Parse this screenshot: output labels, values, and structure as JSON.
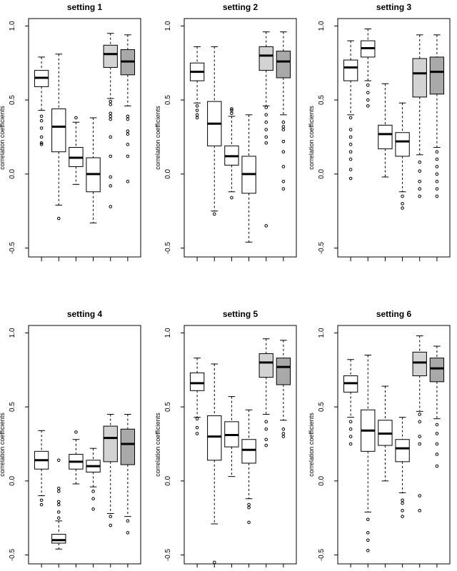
{
  "chart_data": [
    {
      "type": "boxplot",
      "title": "setting 1",
      "ylabel": "correlation coefficients",
      "ylim": [
        -0.56,
        1.05
      ],
      "yticks": [
        "-0.5",
        "0.0",
        "0.5",
        "1.0"
      ],
      "boxes": [
        {
          "whisker_low": 0.43,
          "q1": 0.59,
          "median": 0.65,
          "q3": 0.7,
          "whisker_high": 0.79,
          "outliers": [
            0.39,
            0.36,
            0.31,
            0.25,
            0.21,
            0.2
          ]
        },
        {
          "whisker_low": -0.21,
          "q1": 0.15,
          "median": 0.32,
          "q3": 0.44,
          "whisker_high": 0.81,
          "outliers": [
            -0.3
          ]
        },
        {
          "whisker_low": -0.07,
          "q1": 0.05,
          "median": 0.11,
          "q3": 0.18,
          "whisker_high": 0.35,
          "outliers": [
            0.38
          ]
        },
        {
          "whisker_low": -0.33,
          "q1": -0.12,
          "median": 0.0,
          "q3": 0.11,
          "whisker_high": 0.38,
          "outliers": []
        },
        {
          "whisker_low": 0.51,
          "q1": 0.72,
          "median": 0.81,
          "q3": 0.87,
          "whisker_high": 0.95,
          "outliers": [
            0.49,
            0.47,
            0.41,
            0.39,
            0.37,
            0.25,
            0.12,
            -0.02,
            -0.08,
            -0.22
          ]
        },
        {
          "whisker_low": 0.46,
          "q1": 0.67,
          "median": 0.76,
          "q3": 0.84,
          "whisker_high": 0.94,
          "outliers": [
            0.39,
            0.37,
            0.29,
            0.27,
            0.2,
            0.12,
            -0.05
          ]
        }
      ]
    },
    {
      "type": "boxplot",
      "title": "setting 2",
      "ylabel": "correlation coefficients",
      "ylim": [
        -0.56,
        1.05
      ],
      "yticks": [
        "-0.5",
        "0.0",
        "0.5",
        "1.0"
      ],
      "boxes": [
        {
          "whisker_low": 0.48,
          "q1": 0.63,
          "median": 0.69,
          "q3": 0.75,
          "whisker_high": 0.86,
          "outliers": [
            0.46,
            0.43,
            0.4,
            0.38
          ]
        },
        {
          "whisker_low": -0.25,
          "q1": 0.19,
          "median": 0.34,
          "q3": 0.49,
          "whisker_high": 0.86,
          "outliers": [
            -0.27
          ]
        },
        {
          "whisker_low": -0.12,
          "q1": 0.06,
          "median": 0.12,
          "q3": 0.19,
          "whisker_high": 0.39,
          "outliers": [
            0.41,
            0.43,
            0.44,
            -0.16
          ]
        },
        {
          "whisker_low": -0.46,
          "q1": -0.13,
          "median": 0.0,
          "q3": 0.12,
          "whisker_high": 0.4,
          "outliers": []
        },
        {
          "whisker_low": 0.46,
          "q1": 0.7,
          "median": 0.8,
          "q3": 0.86,
          "whisker_high": 0.96,
          "outliers": [
            0.45,
            0.4,
            0.35,
            0.3,
            0.25,
            0.21,
            -0.35
          ]
        },
        {
          "whisker_low": 0.4,
          "q1": 0.65,
          "median": 0.76,
          "q3": 0.83,
          "whisker_high": 0.96,
          "outliers": [
            0.35,
            0.32,
            0.3,
            0.22,
            0.15,
            0.05,
            -0.05,
            -0.1
          ]
        }
      ]
    },
    {
      "type": "boxplot",
      "title": "setting 3",
      "ylabel": "correlation coefficients",
      "ylim": [
        -0.56,
        1.05
      ],
      "yticks": [
        "-0.5",
        "0.0",
        "0.5",
        "1.0"
      ],
      "boxes": [
        {
          "whisker_low": 0.4,
          "q1": 0.63,
          "median": 0.72,
          "q3": 0.77,
          "whisker_high": 0.9,
          "outliers": [
            0.38,
            0.3,
            0.25,
            0.2,
            0.15,
            0.1,
            0.03,
            -0.03
          ]
        },
        {
          "whisker_low": 0.63,
          "q1": 0.79,
          "median": 0.85,
          "q3": 0.9,
          "whisker_high": 0.98,
          "outliers": [
            0.6,
            0.55,
            0.5,
            0.46
          ]
        },
        {
          "whisker_low": -0.02,
          "q1": 0.17,
          "median": 0.27,
          "q3": 0.33,
          "whisker_high": 0.61,
          "outliers": []
        },
        {
          "whisker_low": -0.12,
          "q1": 0.12,
          "median": 0.22,
          "q3": 0.28,
          "whisker_high": 0.48,
          "outliers": [
            -0.15,
            -0.2,
            -0.23
          ]
        },
        {
          "whisker_low": 0.13,
          "q1": 0.52,
          "median": 0.68,
          "q3": 0.78,
          "whisker_high": 0.94,
          "outliers": [
            0.08,
            0.02,
            -0.05,
            -0.1,
            -0.15
          ]
        },
        {
          "whisker_low": 0.18,
          "q1": 0.54,
          "median": 0.69,
          "q3": 0.79,
          "whisker_high": 0.94,
          "outliers": [
            0.15,
            0.1,
            0.05,
            0.0,
            -0.05,
            -0.1,
            -0.15
          ]
        }
      ]
    },
    {
      "type": "boxplot",
      "title": "setting 4",
      "ylabel": "correlation coefficients",
      "ylim": [
        -0.56,
        1.05
      ],
      "yticks": [
        "-0.5",
        "0.0",
        "0.5",
        "1.0"
      ],
      "boxes": [
        {
          "whisker_low": -0.1,
          "q1": 0.08,
          "median": 0.14,
          "q3": 0.2,
          "whisker_high": 0.34,
          "outliers": [
            -0.13,
            -0.16
          ]
        },
        {
          "whisker_low": -0.46,
          "q1": -0.42,
          "median": -0.4,
          "q3": -0.36,
          "whisker_high": -0.27,
          "outliers": [
            0.14,
            -0.05,
            -0.07,
            -0.14,
            -0.16,
            -0.21,
            -0.25
          ]
        },
        {
          "whisker_low": -0.02,
          "q1": 0.08,
          "median": 0.13,
          "q3": 0.18,
          "whisker_high": 0.28,
          "outliers": [
            0.33
          ]
        },
        {
          "whisker_low": -0.04,
          "q1": 0.06,
          "median": 0.1,
          "q3": 0.14,
          "whisker_high": 0.22,
          "outliers": [
            -0.07,
            -0.12,
            -0.19
          ]
        },
        {
          "whisker_low": -0.22,
          "q1": 0.13,
          "median": 0.29,
          "q3": 0.37,
          "whisker_high": 0.45,
          "outliers": [
            -0.24,
            -0.3
          ]
        },
        {
          "whisker_low": -0.24,
          "q1": 0.11,
          "median": 0.25,
          "q3": 0.35,
          "whisker_high": 0.45,
          "outliers": [
            -0.27,
            -0.35
          ]
        }
      ]
    },
    {
      "type": "boxplot",
      "title": "setting 5",
      "ylabel": "correlation coefficients",
      "ylim": [
        -0.56,
        1.05
      ],
      "yticks": [
        "-0.5",
        "0.0",
        "0.5",
        "1.0"
      ],
      "boxes": [
        {
          "whisker_low": 0.43,
          "q1": 0.61,
          "median": 0.66,
          "q3": 0.73,
          "whisker_high": 0.83,
          "outliers": [
            0.42,
            0.36,
            0.32
          ]
        },
        {
          "whisker_low": -0.29,
          "q1": 0.14,
          "median": 0.3,
          "q3": 0.44,
          "whisker_high": 0.79,
          "outliers": [
            -0.55
          ]
        },
        {
          "whisker_low": 0.03,
          "q1": 0.23,
          "median": 0.31,
          "q3": 0.4,
          "whisker_high": 0.57,
          "outliers": []
        },
        {
          "whisker_low": -0.12,
          "q1": 0.12,
          "median": 0.21,
          "q3": 0.28,
          "whisker_high": 0.48,
          "outliers": [
            -0.16,
            -0.18,
            -0.28
          ]
        },
        {
          "whisker_low": 0.45,
          "q1": 0.7,
          "median": 0.8,
          "q3": 0.86,
          "whisker_high": 0.96,
          "outliers": [
            0.4,
            0.35,
            0.28,
            0.24
          ]
        },
        {
          "whisker_low": 0.41,
          "q1": 0.65,
          "median": 0.77,
          "q3": 0.83,
          "whisker_high": 0.95,
          "outliers": [
            0.35,
            0.32,
            0.3
          ]
        }
      ]
    },
    {
      "type": "boxplot",
      "title": "setting 6",
      "ylabel": "correlation coefficients",
      "ylim": [
        -0.56,
        1.05
      ],
      "yticks": [
        "-0.5",
        "0.0",
        "0.5",
        "1.0"
      ],
      "boxes": [
        {
          "whisker_low": 0.43,
          "q1": 0.6,
          "median": 0.66,
          "q3": 0.71,
          "whisker_high": 0.82,
          "outliers": [
            0.4,
            0.35,
            0.3,
            0.25
          ]
        },
        {
          "whisker_low": -0.21,
          "q1": 0.2,
          "median": 0.34,
          "q3": 0.48,
          "whisker_high": 0.85,
          "outliers": [
            -0.26,
            -0.35,
            -0.4,
            -0.47
          ]
        },
        {
          "whisker_low": 0.0,
          "q1": 0.24,
          "median": 0.32,
          "q3": 0.41,
          "whisker_high": 0.64,
          "outliers": []
        },
        {
          "whisker_low": -0.08,
          "q1": 0.13,
          "median": 0.22,
          "q3": 0.28,
          "whisker_high": 0.43,
          "outliers": [
            -0.13,
            -0.15,
            -0.2,
            -0.24
          ]
        },
        {
          "whisker_low": 0.47,
          "q1": 0.71,
          "median": 0.8,
          "q3": 0.87,
          "whisker_high": 0.98,
          "outliers": [
            0.45,
            0.4,
            0.3,
            0.25,
            -0.1,
            -0.2
          ]
        },
        {
          "whisker_low": 0.42,
          "q1": 0.67,
          "median": 0.76,
          "q3": 0.83,
          "whisker_high": 0.91,
          "outliers": [
            0.38,
            0.32,
            0.25,
            0.18,
            0.1
          ]
        }
      ]
    }
  ],
  "box_colors": [
    "#ffffff",
    "#ffffff",
    "#ffffff",
    "#ffffff",
    "#d3d3d3",
    "#a9a9a9"
  ]
}
